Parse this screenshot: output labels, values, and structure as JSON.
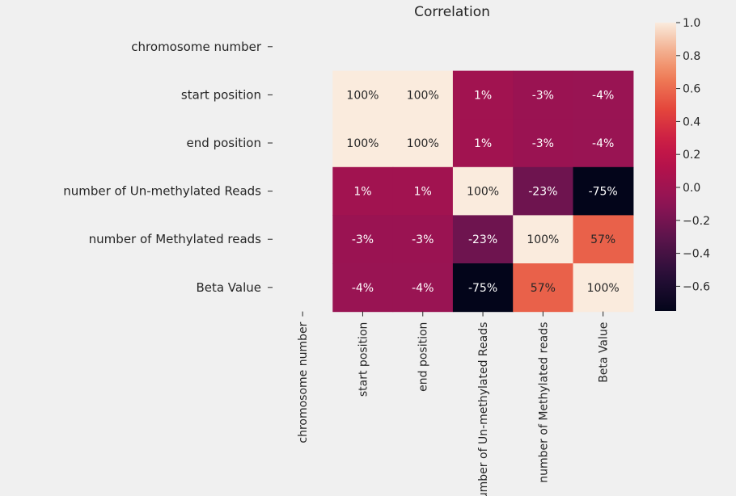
{
  "chart_data": {
    "type": "heatmap",
    "title": "Correlation",
    "row_labels": [
      "chromosome number",
      "start position",
      "end position",
      "number of Un-methylated Reads",
      "number of Methylated reads",
      "Beta Value"
    ],
    "col_labels": [
      "chromosome number",
      "start position",
      "end position",
      "number of Un-methylated Reads",
      "number of Methylated reads",
      "Beta Value"
    ],
    "values": [
      [
        null,
        null,
        null,
        null,
        null,
        null
      ],
      [
        null,
        1.0,
        1.0,
        0.01,
        -0.03,
        -0.04
      ],
      [
        null,
        1.0,
        1.0,
        0.01,
        -0.03,
        -0.04
      ],
      [
        null,
        0.01,
        0.01,
        1.0,
        -0.23,
        -0.75
      ],
      [
        null,
        -0.03,
        -0.03,
        -0.23,
        1.0,
        0.57
      ],
      [
        null,
        -0.04,
        -0.04,
        -0.75,
        0.57,
        1.0
      ]
    ],
    "annotations": [
      [
        "",
        "",
        "",
        "",
        "",
        ""
      ],
      [
        "",
        "100%",
        "100%",
        "1%",
        "-3%",
        "-4%"
      ],
      [
        "",
        "100%",
        "100%",
        "1%",
        "-3%",
        "-4%"
      ],
      [
        "",
        "1%",
        "1%",
        "100%",
        "-23%",
        "-75%"
      ],
      [
        "",
        "-3%",
        "-3%",
        "-23%",
        "100%",
        "57%"
      ],
      [
        "",
        "-4%",
        "-4%",
        "-75%",
        "57%",
        "100%"
      ]
    ],
    "colorbar": {
      "min": -0.75,
      "max": 1.0,
      "ticks": [
        1.0,
        0.8,
        0.6,
        0.4,
        0.2,
        0.0,
        -0.2,
        -0.4,
        -0.6
      ],
      "tick_labels": [
        "1.0",
        "0.8",
        "0.6",
        "0.4",
        "0.2",
        "0.0",
        "−0.2",
        "−0.4",
        "−0.6"
      ],
      "colormap": "rocket"
    }
  }
}
